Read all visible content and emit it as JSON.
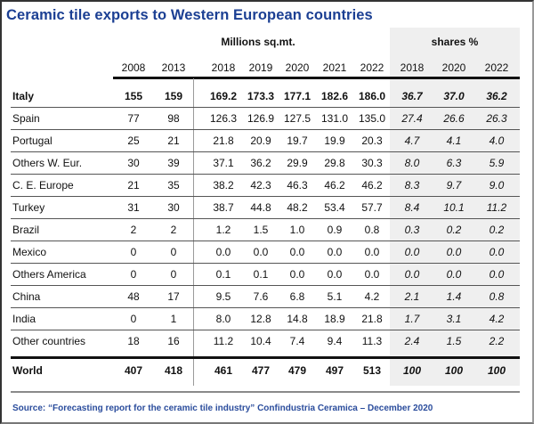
{
  "title": "Ceramic tile exports to Western European countries",
  "unit_label": "Millions sq.mt.",
  "shares_label": "shares %",
  "columns": {
    "volume_years": [
      "2008",
      "2013",
      "2018",
      "2019",
      "2020",
      "2021",
      "2022"
    ],
    "share_years": [
      "2018",
      "2020",
      "2022"
    ]
  },
  "rows": [
    {
      "label": "Italy",
      "values": [
        "155",
        "159",
        "169.2",
        "173.3",
        "177.1",
        "182.6",
        "186.0"
      ],
      "shares": [
        "36.7",
        "37.0",
        "36.2"
      ]
    },
    {
      "label": "Spain",
      "values": [
        "77",
        "98",
        "126.3",
        "126.9",
        "127.5",
        "131.0",
        "135.0"
      ],
      "shares": [
        "27.4",
        "26.6",
        "26.3"
      ]
    },
    {
      "label": "Portugal",
      "values": [
        "25",
        "21",
        "21.8",
        "20.9",
        "19.7",
        "19.9",
        "20.3"
      ],
      "shares": [
        "4.7",
        "4.1",
        "4.0"
      ]
    },
    {
      "label": "Others W. Eur.",
      "values": [
        "30",
        "39",
        "37.1",
        "36.2",
        "29.9",
        "29.8",
        "30.3"
      ],
      "shares": [
        "8.0",
        "6.3",
        "5.9"
      ]
    },
    {
      "label": "C. E. Europe",
      "values": [
        "21",
        "35",
        "38.2",
        "42.3",
        "46.3",
        "46.2",
        "46.2"
      ],
      "shares": [
        "8.3",
        "9.7",
        "9.0"
      ]
    },
    {
      "label": "Turkey",
      "values": [
        "31",
        "30",
        "38.7",
        "44.8",
        "48.2",
        "53.4",
        "57.7"
      ],
      "shares": [
        "8.4",
        "10.1",
        "11.2"
      ]
    },
    {
      "label": "Brazil",
      "values": [
        "2",
        "2",
        "1.2",
        "1.5",
        "1.0",
        "0.9",
        "0.8"
      ],
      "shares": [
        "0.3",
        "0.2",
        "0.2"
      ]
    },
    {
      "label": "Mexico",
      "values": [
        "0",
        "0",
        "0.0",
        "0.0",
        "0.0",
        "0.0",
        "0.0"
      ],
      "shares": [
        "0.0",
        "0.0",
        "0.0"
      ]
    },
    {
      "label": "Others America",
      "values": [
        "0",
        "0",
        "0.1",
        "0.1",
        "0.0",
        "0.0",
        "0.0"
      ],
      "shares": [
        "0.0",
        "0.0",
        "0.0"
      ]
    },
    {
      "label": "China",
      "values": [
        "48",
        "17",
        "9.5",
        "7.6",
        "6.8",
        "5.1",
        "4.2"
      ],
      "shares": [
        "2.1",
        "1.4",
        "0.8"
      ]
    },
    {
      "label": "India",
      "values": [
        "0",
        "1",
        "8.0",
        "12.8",
        "14.8",
        "18.9",
        "21.8"
      ],
      "shares": [
        "1.7",
        "3.1",
        "4.2"
      ]
    },
    {
      "label": "Other countries",
      "values": [
        "18",
        "16",
        "11.2",
        "10.4",
        "7.4",
        "9.4",
        "11.3"
      ],
      "shares": [
        "2.4",
        "1.5",
        "2.2"
      ]
    },
    {
      "label": "World",
      "values": [
        "407",
        "418",
        "461",
        "477",
        "479",
        "497",
        "513"
      ],
      "shares": [
        "100",
        "100",
        "100"
      ]
    }
  ],
  "source": "Source: “Forecasting report for the ceramic tile industry” Confindustria Ceramica – December 2020",
  "colors": {
    "title": "#1b3f93",
    "source": "#2a4c9c",
    "shares_shade": "#efefef"
  }
}
